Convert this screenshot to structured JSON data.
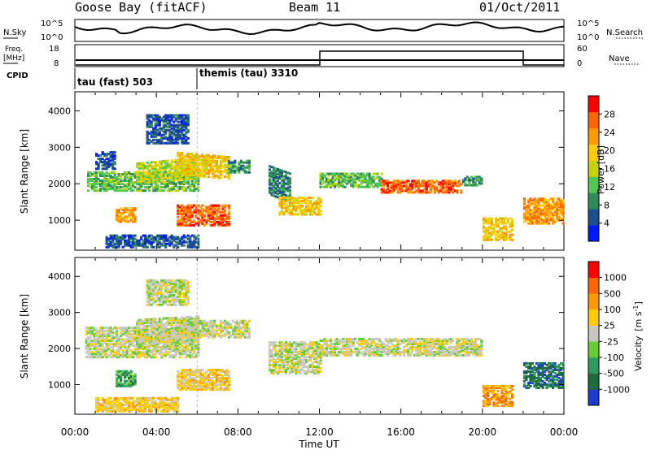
{
  "header": {
    "station": "Goose Bay (fitACF)",
    "beam": "Beam 11",
    "date": "01/Oct/2011"
  },
  "noise_panel": {
    "left_label": "N.Sky",
    "left_ticks": [
      "10^5",
      "10^0"
    ],
    "right_ticks": [
      "10^5",
      "10^0"
    ],
    "right_label": "N.Search"
  },
  "freq_panel": {
    "left_label_1": "Freq.",
    "left_label_2": "[MHz]",
    "left_ticks": [
      "18",
      "8"
    ],
    "right_ticks": [
      "60",
      "0"
    ],
    "right_label": "Nave"
  },
  "cpid_panel": {
    "label": "CPID",
    "modes": [
      "tau (fast) 503",
      "themis (tau) 3310"
    ]
  },
  "chart_data": [
    {
      "type": "heatmap",
      "name": "power",
      "ylabel": "Slant Range [km]",
      "yticks": [
        "4000",
        "3000",
        "2000",
        "1000"
      ],
      "ytick_values": [
        4000,
        3000,
        2000,
        1000
      ],
      "ylim": [
        200,
        4500
      ],
      "xlim": [
        0,
        24
      ],
      "colorbar_label": "Power [dB]",
      "colorbar_ticks": [
        "28",
        "24",
        "20",
        "16",
        "12",
        "8",
        "4"
      ],
      "colors": [
        "#0018ff",
        "#1d4f8f",
        "#2e8b57",
        "#53c653",
        "#c8d400",
        "#ffcc00",
        "#ff9900",
        "#ff6600",
        "#ff0000"
      ],
      "bands": [
        {
          "t0": 0.6,
          "t1": 6.0,
          "r0": 1800,
          "r1": 2350,
          "lvl": 3,
          "slope": 0
        },
        {
          "t0": 1.0,
          "t1": 2.0,
          "r0": 2400,
          "r1": 2900,
          "lvl": 1,
          "slope": 0
        },
        {
          "t0": 2.0,
          "t1": 3.0,
          "r0": 950,
          "r1": 1350,
          "lvl": 6,
          "slope": 0
        },
        {
          "t0": 3.0,
          "t1": 6.0,
          "r0": 2000,
          "r1": 2600,
          "lvl": 4,
          "slope": 150
        },
        {
          "t0": 3.5,
          "t1": 5.5,
          "r0": 3100,
          "r1": 3900,
          "lvl": 1,
          "slope": 0
        },
        {
          "t0": 5.0,
          "t1": 7.5,
          "r0": 2250,
          "r1": 2900,
          "lvl": 5,
          "slope": -120
        },
        {
          "t0": 5.0,
          "t1": 7.5,
          "r0": 850,
          "r1": 1450,
          "lvl": 7,
          "slope": 0
        },
        {
          "t0": 7.5,
          "t1": 8.5,
          "r0": 2300,
          "r1": 2650,
          "lvl": 2,
          "slope": 0
        },
        {
          "t0": 9.5,
          "t1": 10.5,
          "r0": 1700,
          "r1": 2500,
          "lvl": 2,
          "slope": -200
        },
        {
          "t0": 10.0,
          "t1": 12.0,
          "r0": 1150,
          "r1": 1650,
          "lvl": 5,
          "slope": 0
        },
        {
          "t0": 12.0,
          "t1": 15.0,
          "r0": 1900,
          "r1": 2300,
          "lvl": 3,
          "slope": 0
        },
        {
          "t0": 15.0,
          "t1": 19.0,
          "r0": 1750,
          "r1": 2100,
          "lvl": 7,
          "slope": 0
        },
        {
          "t0": 19.0,
          "t1": 20.0,
          "r0": 1950,
          "r1": 2200,
          "lvl": 2,
          "slope": 0
        },
        {
          "t0": 20.0,
          "t1": 21.5,
          "r0": 450,
          "r1": 1100,
          "lvl": 5,
          "slope": 0
        },
        {
          "t0": 22.0,
          "t1": 24.0,
          "r0": 900,
          "r1": 1600,
          "lvl": 6,
          "slope": 0
        },
        {
          "t0": 1.5,
          "t1": 6.0,
          "r0": 250,
          "r1": 600,
          "lvl": 1,
          "slope": 0
        }
      ]
    },
    {
      "type": "heatmap",
      "name": "velocity",
      "ylabel": "Slant Range [km]",
      "yticks": [
        "4000",
        "3000",
        "2000",
        "1000"
      ],
      "ytick_values": [
        4000,
        3000,
        2000,
        1000
      ],
      "ylim": [
        200,
        4500
      ],
      "xlim": [
        0,
        24
      ],
      "xticks": [
        "00:00",
        "04:00",
        "08:00",
        "12:00",
        "16:00",
        "20:00",
        "00:00"
      ],
      "xtick_values": [
        0,
        4,
        8,
        12,
        16,
        20,
        24
      ],
      "xlabel": "Time UT",
      "colorbar_label": "Velocity",
      "colorbar_unit": "[m s",
      "colorbar_unit_sup": "-1",
      "colorbar_unit_end": "]",
      "colorbar_ticks": [
        "1000",
        "500",
        "100",
        "25",
        "-25",
        "-100",
        "-500",
        "-1000"
      ],
      "colors": [
        "#1d3bd1",
        "#1e6b3e",
        "#2e9b5e",
        "#66cc33",
        "#c8c8c0",
        "#ffcc00",
        "#ff9900",
        "#ff6600",
        "#ff0000"
      ],
      "bands": [
        {
          "t0": 0.5,
          "t1": 6.0,
          "r0": 1750,
          "r1": 2600,
          "lvl": 4,
          "slope": 0
        },
        {
          "t0": 3.0,
          "t1": 6.0,
          "r0": 2100,
          "r1": 2800,
          "lvl": 4,
          "slope": 100
        },
        {
          "t0": 3.5,
          "t1": 5.5,
          "r0": 3200,
          "r1": 3900,
          "lvl": 4,
          "slope": 0
        },
        {
          "t0": 5.0,
          "t1": 8.5,
          "r0": 2300,
          "r1": 2800,
          "lvl": 4,
          "slope": 0
        },
        {
          "t0": 2.0,
          "t1": 3.0,
          "r0": 950,
          "r1": 1400,
          "lvl": 2,
          "slope": 0
        },
        {
          "t0": 5.0,
          "t1": 7.5,
          "r0": 850,
          "r1": 1450,
          "lvl": 5,
          "slope": 0
        },
        {
          "t0": 9.5,
          "t1": 12.0,
          "r0": 1300,
          "r1": 2200,
          "lvl": 4,
          "slope": 0
        },
        {
          "t0": 12.0,
          "t1": 20.0,
          "r0": 1800,
          "r1": 2300,
          "lvl": 4,
          "slope": 0
        },
        {
          "t0": 20.0,
          "t1": 21.5,
          "r0": 400,
          "r1": 1000,
          "lvl": 6,
          "slope": 0
        },
        {
          "t0": 22.0,
          "t1": 24.0,
          "r0": 900,
          "r1": 1600,
          "lvl": 1,
          "slope": 0
        },
        {
          "t0": 1.0,
          "t1": 5.0,
          "r0": 250,
          "r1": 650,
          "lvl": 5,
          "slope": 0
        }
      ]
    }
  ]
}
